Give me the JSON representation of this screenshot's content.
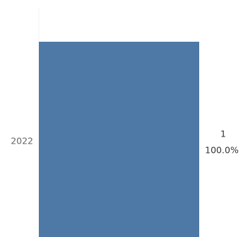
{
  "chart_data": {
    "type": "bar",
    "orientation": "horizontal",
    "categories": [
      "2022"
    ],
    "values": [
      1
    ],
    "value_labels": [
      "1"
    ],
    "percent_labels": [
      "100.0%"
    ],
    "xlim": [
      0,
      1
    ],
    "grid": false,
    "legend": "none",
    "colors": {
      "bar": "#4e78a6",
      "axis_line": "#f0f0f0",
      "category_text": "#666666",
      "value_text": "#333333"
    }
  }
}
